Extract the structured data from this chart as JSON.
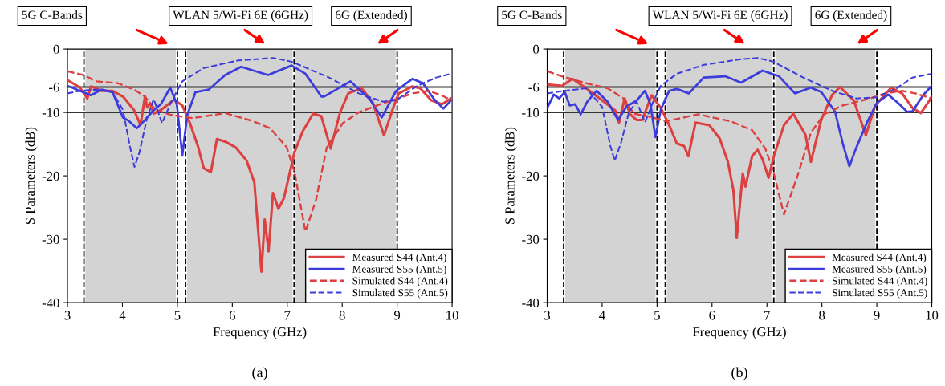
{
  "chart_data": [
    {
      "type": "line",
      "xlabel": "Frequency (GHz)",
      "ylabel": "S Parameters (dB)",
      "xlim": [
        3,
        10
      ],
      "xticks": [
        3,
        4,
        5,
        6,
        7,
        8,
        9,
        10
      ],
      "ylim": [
        -40,
        0
      ],
      "yticks": [
        0,
        -6,
        -10,
        -20,
        -30,
        -40
      ],
      "grid": false,
      "legend": "bottom right",
      "bands": [
        {
          "axis": "x",
          "from": 3.3,
          "to": 5.0,
          "color": "#d3d3d3"
        },
        {
          "axis": "x",
          "from": 5.15,
          "to": 7.125,
          "color": "#d3d3d3"
        },
        {
          "axis": "x",
          "from": 7.125,
          "to": 9.0,
          "color": "#d3d3d3"
        }
      ],
      "ref_lines": [
        {
          "axis": "y",
          "value": -6,
          "color": "#333333",
          "line_style": "solid"
        },
        {
          "axis": "y",
          "value": -10,
          "color": "#333333",
          "line_style": "solid"
        },
        {
          "axis": "x",
          "value": 3.3,
          "color": "#000000",
          "line_style": "dashed"
        },
        {
          "axis": "x",
          "value": 5.0,
          "color": "#000000",
          "line_style": "dashed"
        },
        {
          "axis": "x",
          "value": 5.15,
          "color": "#000000",
          "line_style": "dashed"
        },
        {
          "axis": "x",
          "value": 7.125,
          "color": "#000000",
          "line_style": "dashed"
        },
        {
          "axis": "x",
          "value": 9.0,
          "color": "#000000",
          "line_style": "dashed"
        }
      ],
      "annotations": [
        "5G C-Bands",
        "WLAN 5/Wi-Fi 6E (6GHz)",
        "6G (Extended)",
        "(a)"
      ],
      "series": [
        {
          "name": "Measured S44 (Ant.4)",
          "color": "#dc4040",
          "line_style": "solid",
          "x": [
            3.0,
            3.23,
            3.36,
            3.43,
            3.62,
            3.82,
            4.01,
            4.21,
            4.33,
            4.41,
            4.45,
            4.5,
            4.57,
            4.7,
            4.94,
            5.09,
            5.23,
            5.38,
            5.48,
            5.61,
            5.72,
            5.87,
            6.06,
            6.26,
            6.4,
            6.53,
            6.59,
            6.66,
            6.74,
            6.84,
            6.94,
            7.03,
            7.13,
            7.28,
            7.47,
            7.62,
            7.79,
            7.96,
            8.11,
            8.35,
            8.55,
            8.76,
            8.93,
            9.03,
            9.28,
            9.42,
            9.62,
            9.82,
            9.98
          ],
          "values": [
            -4.9,
            -6.1,
            -7.8,
            -5.9,
            -6.6,
            -6.6,
            -7.5,
            -9.6,
            -12.0,
            -7.5,
            -9.2,
            -8.5,
            -10.2,
            -9.6,
            -8.0,
            -8.9,
            -11.7,
            -15.5,
            -18.8,
            -19.4,
            -14.2,
            -14.6,
            -15.5,
            -17.6,
            -21.0,
            -35.1,
            -26.9,
            -31.9,
            -22.7,
            -25.2,
            -23.5,
            -20.1,
            -16.3,
            -13.0,
            -10.2,
            -10.6,
            -15.7,
            -10.0,
            -7.0,
            -6.2,
            -8.3,
            -13.6,
            -9.2,
            -7.0,
            -5.9,
            -6.2,
            -8.1,
            -8.7,
            -7.8
          ]
        },
        {
          "name": "Measured S55 (Ant.5)",
          "color": "#3c3cdc",
          "line_style": "solid",
          "x": [
            3.0,
            3.28,
            3.43,
            3.62,
            3.82,
            4.01,
            4.11,
            4.26,
            4.4,
            4.55,
            4.7,
            4.87,
            4.99,
            5.09,
            5.18,
            5.33,
            5.57,
            5.87,
            6.16,
            6.65,
            7.08,
            7.33,
            7.62,
            7.67,
            8.15,
            8.5,
            8.72,
            8.98,
            9.28,
            9.47,
            9.67,
            9.84,
            9.98
          ],
          "values": [
            -5.8,
            -6.8,
            -7.3,
            -6.4,
            -6.8,
            -10.8,
            -11.3,
            -12.5,
            -11.3,
            -9.8,
            -8.7,
            -6.1,
            -8.7,
            -16.8,
            -10.4,
            -6.8,
            -6.4,
            -4.1,
            -2.8,
            -4.1,
            -2.6,
            -3.9,
            -7.5,
            -7.5,
            -5.1,
            -7.9,
            -10.8,
            -6.6,
            -4.7,
            -5.4,
            -7.9,
            -9.4,
            -8.1
          ]
        },
        {
          "name": "Simulated S44 (Ant.4)",
          "color": "#dc4040",
          "line_style": "dashed",
          "x": [
            3.0,
            3.28,
            3.53,
            3.92,
            4.21,
            4.41,
            4.6,
            4.89,
            5.28,
            5.87,
            6.35,
            6.69,
            6.99,
            7.13,
            7.33,
            7.52,
            7.72,
            8.01,
            8.3,
            8.69,
            8.98,
            9.28,
            9.57,
            9.81,
            9.98
          ],
          "values": [
            -3.5,
            -4.1,
            -5.1,
            -5.4,
            -6.4,
            -7.5,
            -9.6,
            -10.4,
            -10.9,
            -10.1,
            -11.3,
            -12.5,
            -15.5,
            -19.3,
            -28.8,
            -23.9,
            -15.5,
            -11.7,
            -10.0,
            -8.7,
            -7.9,
            -7.0,
            -6.6,
            -7.3,
            -8.1
          ]
        },
        {
          "name": "Simulated S55 (Ant.5)",
          "color": "#3c3cdc",
          "line_style": "dashed",
          "x": [
            3.0,
            3.23,
            3.53,
            3.82,
            4.01,
            4.14,
            4.22,
            4.31,
            4.45,
            4.57,
            4.72,
            4.89,
            5.09,
            5.48,
            6.11,
            6.74,
            7.08,
            7.76,
            8.3,
            8.74,
            8.98,
            9.37,
            9.71,
            9.98
          ],
          "values": [
            -7.0,
            -6.6,
            -6.4,
            -6.8,
            -9.6,
            -15.5,
            -18.6,
            -16.3,
            -10.8,
            -7.9,
            -11.7,
            -8.3,
            -5.1,
            -3.0,
            -1.8,
            -1.4,
            -2.0,
            -4.5,
            -7.0,
            -8.3,
            -8.1,
            -5.8,
            -4.5,
            -3.9
          ]
        }
      ]
    },
    {
      "type": "line",
      "xlabel": "Frequency (GHz)",
      "ylabel": "S Parameters (dB)",
      "xlim": [
        3,
        10
      ],
      "xticks": [
        3,
        4,
        5,
        6,
        7,
        8,
        9,
        10
      ],
      "ylim": [
        -40,
        0
      ],
      "yticks": [
        0,
        -6,
        -10,
        -20,
        -30,
        -40
      ],
      "grid": false,
      "legend": "bottom right",
      "bands": [
        {
          "axis": "x",
          "from": 3.3,
          "to": 5.0,
          "color": "#d3d3d3"
        },
        {
          "axis": "x",
          "from": 5.15,
          "to": 7.125,
          "color": "#d3d3d3"
        },
        {
          "axis": "x",
          "from": 7.125,
          "to": 9.0,
          "color": "#d3d3d3"
        }
      ],
      "ref_lines": [
        {
          "axis": "y",
          "value": -6,
          "color": "#333333",
          "line_style": "solid"
        },
        {
          "axis": "y",
          "value": -10,
          "color": "#333333",
          "line_style": "solid"
        },
        {
          "axis": "x",
          "value": 3.3,
          "color": "#000000",
          "line_style": "dashed"
        },
        {
          "axis": "x",
          "value": 5.0,
          "color": "#000000",
          "line_style": "dashed"
        },
        {
          "axis": "x",
          "value": 5.15,
          "color": "#000000",
          "line_style": "dashed"
        },
        {
          "axis": "x",
          "value": 7.125,
          "color": "#000000",
          "line_style": "dashed"
        },
        {
          "axis": "x",
          "value": 9.0,
          "color": "#000000",
          "line_style": "dashed"
        }
      ],
      "annotations": [
        "5G C-Bands",
        "WLAN 5/Wi-Fi 6E (6GHz)",
        "6G (Extended)",
        "(b)"
      ],
      "series": [
        {
          "name": "Measured S44 (Ant.4)",
          "color": "#dc4040",
          "line_style": "solid",
          "x": [
            3.0,
            3.27,
            3.46,
            3.71,
            4.0,
            4.24,
            4.31,
            4.41,
            4.51,
            4.63,
            4.73,
            4.9,
            5.07,
            5.22,
            5.36,
            5.49,
            5.57,
            5.7,
            5.95,
            6.14,
            6.29,
            6.39,
            6.45,
            6.56,
            6.61,
            6.73,
            6.83,
            6.92,
            7.03,
            7.14,
            7.31,
            7.48,
            7.7,
            7.8,
            7.99,
            8.19,
            8.33,
            8.58,
            8.8,
            8.97,
            9.26,
            9.46,
            9.65,
            9.8,
            10.0
          ],
          "values": [
            -5.6,
            -5.8,
            -4.7,
            -6.2,
            -8.1,
            -9.7,
            -11.6,
            -7.8,
            -10.3,
            -11.2,
            -11.2,
            -7.3,
            -9.3,
            -12.0,
            -14.9,
            -15.3,
            -16.9,
            -11.6,
            -12.0,
            -14.1,
            -17.8,
            -22.3,
            -29.8,
            -19.6,
            -21.7,
            -16.9,
            -15.9,
            -17.4,
            -20.3,
            -16.5,
            -12.0,
            -10.2,
            -13.5,
            -17.8,
            -11.1,
            -7.2,
            -6.0,
            -8.1,
            -13.6,
            -8.9,
            -6.1,
            -7.0,
            -9.3,
            -10.1,
            -7.6
          ]
        },
        {
          "name": "Measured S55 (Ant.5)",
          "color": "#3c3cdc",
          "line_style": "solid",
          "x": [
            3.0,
            3.12,
            3.22,
            3.32,
            3.41,
            3.51,
            3.61,
            3.73,
            3.9,
            4.1,
            4.29,
            4.44,
            4.63,
            4.78,
            4.88,
            4.97,
            5.07,
            5.22,
            5.36,
            5.58,
            5.85,
            6.24,
            6.53,
            6.92,
            7.22,
            7.51,
            7.8,
            7.99,
            8.24,
            8.38,
            8.5,
            8.62,
            8.82,
            9.0,
            9.21,
            9.41,
            9.55,
            9.65,
            9.85,
            10.0
          ],
          "values": [
            -9.3,
            -7.2,
            -7.8,
            -6.8,
            -8.9,
            -8.7,
            -10.3,
            -8.3,
            -6.6,
            -8.3,
            -11.2,
            -9.1,
            -8.1,
            -6.6,
            -8.7,
            -13.9,
            -9.5,
            -6.6,
            -6.3,
            -7.0,
            -4.5,
            -4.3,
            -5.3,
            -3.4,
            -4.3,
            -7.0,
            -6.1,
            -6.8,
            -9.9,
            -14.9,
            -18.5,
            -15.7,
            -11.6,
            -8.5,
            -7.2,
            -8.7,
            -9.9,
            -9.8,
            -7.2,
            -5.8
          ]
        },
        {
          "name": "Simulated S44 (Ant.4)",
          "color": "#dc4040",
          "line_style": "dashed",
          "x": [
            3.0,
            3.27,
            3.71,
            4.1,
            4.39,
            4.58,
            4.88,
            5.17,
            5.75,
            6.34,
            6.73,
            6.97,
            7.12,
            7.31,
            7.56,
            7.8,
            8.04,
            8.38,
            8.87,
            9.16,
            9.46,
            9.7,
            10.0
          ],
          "values": [
            -3.5,
            -4.3,
            -5.4,
            -6.2,
            -7.8,
            -10.2,
            -10.7,
            -11.4,
            -10.3,
            -11.4,
            -12.8,
            -15.7,
            -19.4,
            -26.1,
            -19.9,
            -13.2,
            -10.3,
            -8.9,
            -7.8,
            -7.0,
            -6.6,
            -7.0,
            -7.8
          ]
        },
        {
          "name": "Simulated S55 (Ant.5)",
          "color": "#3c3cdc",
          "line_style": "dashed",
          "x": [
            3.0,
            3.32,
            3.71,
            4.0,
            4.15,
            4.23,
            4.34,
            4.49,
            4.63,
            4.78,
            4.92,
            5.07,
            5.36,
            5.85,
            6.53,
            6.83,
            7.12,
            7.66,
            8.19,
            8.63,
            9.0,
            9.36,
            9.65,
            10.0
          ],
          "values": [
            -7.0,
            -6.6,
            -6.2,
            -9.1,
            -15.3,
            -17.6,
            -14.9,
            -9.9,
            -8.3,
            -11.6,
            -8.5,
            -5.8,
            -3.9,
            -2.5,
            -1.6,
            -1.4,
            -2.0,
            -4.5,
            -6.6,
            -7.8,
            -7.6,
            -6.2,
            -4.5,
            -3.9
          ]
        }
      ]
    }
  ]
}
